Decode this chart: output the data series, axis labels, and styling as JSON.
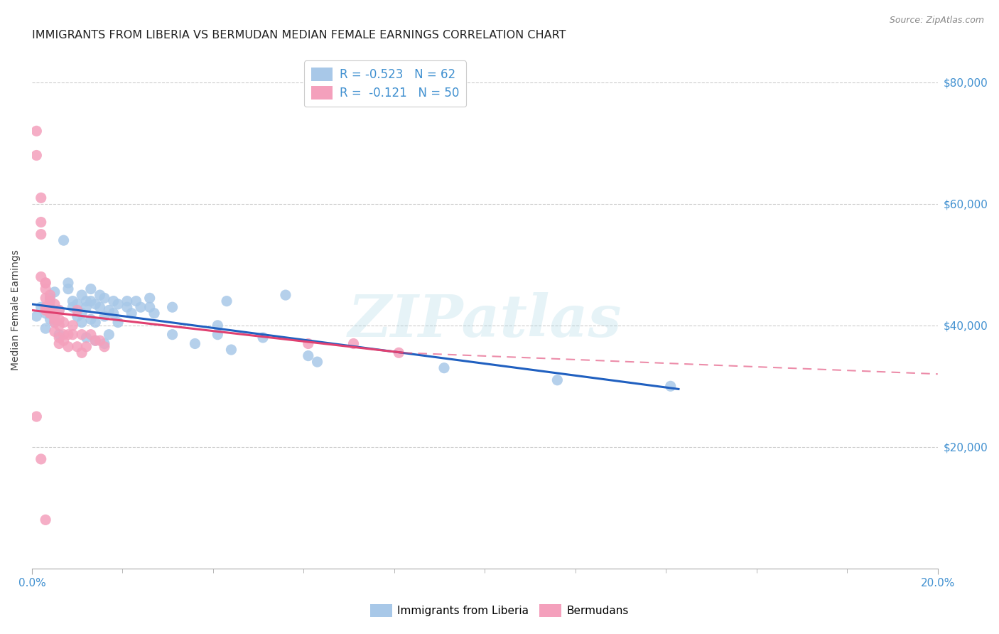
{
  "title": "IMMIGRANTS FROM LIBERIA VS BERMUDAN MEDIAN FEMALE EARNINGS CORRELATION CHART",
  "source": "Source: ZipAtlas.com",
  "ylabel": "Median Female Earnings",
  "ylabel_ticks": [
    "$20,000",
    "$40,000",
    "$60,000",
    "$80,000"
  ],
  "ylabel_tick_vals": [
    20000,
    40000,
    60000,
    80000
  ],
  "watermark": "ZIPatlas",
  "legend_items": [
    {
      "label": "Immigrants from Liberia",
      "R": "-0.523",
      "N": "62",
      "scatter_color": "#a8c8e8",
      "line_color": "#2060c0"
    },
    {
      "label": "Bermudans",
      "R": "-0.121",
      "N": "50",
      "scatter_color": "#f4a0bc",
      "line_color": "#e04070"
    }
  ],
  "blue_scatter": [
    [
      0.001,
      41500
    ],
    [
      0.002,
      43000
    ],
    [
      0.003,
      42000
    ],
    [
      0.003,
      39500
    ],
    [
      0.004,
      44500
    ],
    [
      0.004,
      41000
    ],
    [
      0.005,
      45500
    ],
    [
      0.005,
      40500
    ],
    [
      0.006,
      38500
    ],
    [
      0.006,
      42500
    ],
    [
      0.007,
      54000
    ],
    [
      0.008,
      47000
    ],
    [
      0.008,
      46000
    ],
    [
      0.009,
      44000
    ],
    [
      0.009,
      43000
    ],
    [
      0.01,
      41500
    ],
    [
      0.01,
      43500
    ],
    [
      0.011,
      45000
    ],
    [
      0.011,
      42000
    ],
    [
      0.011,
      40500
    ],
    [
      0.012,
      44000
    ],
    [
      0.012,
      43000
    ],
    [
      0.012,
      38000
    ],
    [
      0.013,
      46000
    ],
    [
      0.013,
      44000
    ],
    [
      0.013,
      41000
    ],
    [
      0.014,
      43500
    ],
    [
      0.014,
      40500
    ],
    [
      0.014,
      37500
    ],
    [
      0.015,
      45000
    ],
    [
      0.015,
      43000
    ],
    [
      0.016,
      44500
    ],
    [
      0.016,
      41500
    ],
    [
      0.016,
      37000
    ],
    [
      0.017,
      42500
    ],
    [
      0.017,
      38500
    ],
    [
      0.018,
      44000
    ],
    [
      0.018,
      42000
    ],
    [
      0.019,
      43500
    ],
    [
      0.019,
      40500
    ],
    [
      0.021,
      44000
    ],
    [
      0.021,
      43000
    ],
    [
      0.022,
      42000
    ],
    [
      0.023,
      44000
    ],
    [
      0.024,
      43000
    ],
    [
      0.026,
      44500
    ],
    [
      0.026,
      43000
    ],
    [
      0.027,
      42000
    ],
    [
      0.031,
      43000
    ],
    [
      0.031,
      38500
    ],
    [
      0.036,
      37000
    ],
    [
      0.041,
      40000
    ],
    [
      0.041,
      38500
    ],
    [
      0.043,
      44000
    ],
    [
      0.044,
      36000
    ],
    [
      0.051,
      38000
    ],
    [
      0.056,
      45000
    ],
    [
      0.061,
      35000
    ],
    [
      0.063,
      34000
    ],
    [
      0.091,
      33000
    ],
    [
      0.116,
      31000
    ],
    [
      0.141,
      30000
    ]
  ],
  "pink_scatter": [
    [
      0.001,
      72000
    ],
    [
      0.001,
      68000
    ],
    [
      0.002,
      61000
    ],
    [
      0.002,
      57000
    ],
    [
      0.002,
      55000
    ],
    [
      0.002,
      48000
    ],
    [
      0.003,
      47000
    ],
    [
      0.003,
      47000
    ],
    [
      0.003,
      46000
    ],
    [
      0.003,
      44500
    ],
    [
      0.003,
      43000
    ],
    [
      0.003,
      42500
    ],
    [
      0.004,
      42000
    ],
    [
      0.004,
      45000
    ],
    [
      0.004,
      44000
    ],
    [
      0.004,
      43000
    ],
    [
      0.004,
      42000
    ],
    [
      0.005,
      41500
    ],
    [
      0.005,
      40500
    ],
    [
      0.005,
      43500
    ],
    [
      0.005,
      42000
    ],
    [
      0.005,
      41000
    ],
    [
      0.005,
      39000
    ],
    [
      0.006,
      38000
    ],
    [
      0.006,
      37000
    ],
    [
      0.006,
      42500
    ],
    [
      0.006,
      41000
    ],
    [
      0.006,
      40000
    ],
    [
      0.007,
      38500
    ],
    [
      0.007,
      37500
    ],
    [
      0.007,
      40500
    ],
    [
      0.008,
      38500
    ],
    [
      0.008,
      36500
    ],
    [
      0.009,
      40000
    ],
    [
      0.009,
      38500
    ],
    [
      0.01,
      42500
    ],
    [
      0.01,
      36500
    ],
    [
      0.011,
      38500
    ],
    [
      0.011,
      35500
    ],
    [
      0.012,
      36500
    ],
    [
      0.013,
      38500
    ],
    [
      0.014,
      37500
    ],
    [
      0.015,
      37500
    ],
    [
      0.016,
      36500
    ],
    [
      0.071,
      37000
    ],
    [
      0.081,
      35500
    ],
    [
      0.002,
      18000
    ],
    [
      0.003,
      8000
    ],
    [
      0.001,
      25000
    ],
    [
      0.061,
      37000
    ]
  ],
  "blue_line_solid": [
    [
      0.0,
      43500
    ],
    [
      0.143,
      29500
    ]
  ],
  "pink_line_solid": [
    [
      0.0,
      42500
    ],
    [
      0.082,
      35500
    ]
  ],
  "pink_line_dash": [
    [
      0.082,
      35500
    ],
    [
      0.2,
      32000
    ]
  ],
  "xlim": [
    0.0,
    0.2
  ],
  "ylim": [
    0,
    85000
  ],
  "background_color": "#ffffff",
  "grid_color": "#cccccc",
  "title_fontsize": 11.5,
  "axis_label_fontsize": 10,
  "tick_fontsize": 10,
  "right_tick_color": "#4090d0",
  "bottom_tick_color": "#4090d0"
}
